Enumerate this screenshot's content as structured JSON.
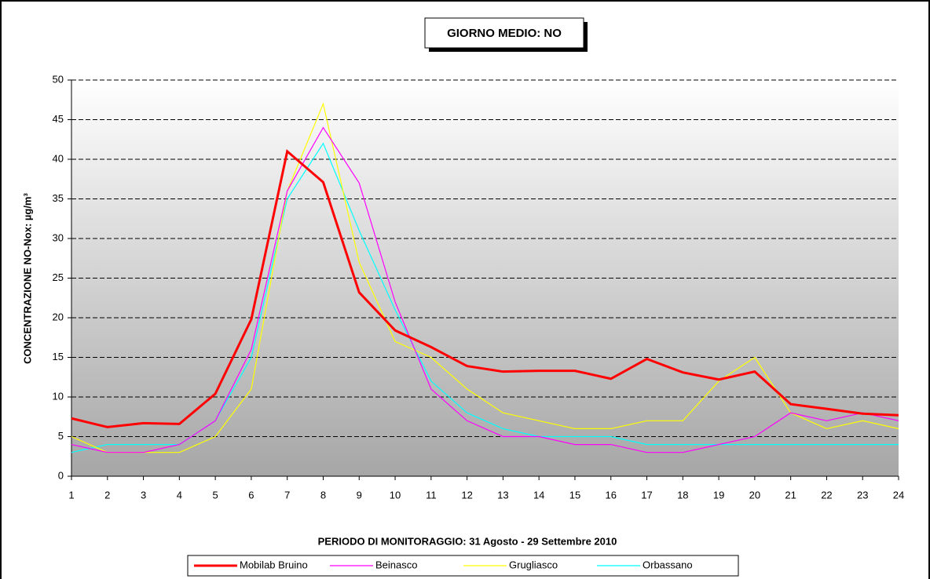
{
  "chart_data": {
    "type": "line",
    "title": "GIORNO MEDIO: NO",
    "y_label": "CONCENTRAZIONE NO-Nox: µg/m³",
    "x_label": "PERIODO DI MONITORAGGIO: 31 Agosto - 29 Settembre 2010",
    "x": [
      1,
      2,
      3,
      4,
      5,
      6,
      7,
      8,
      9,
      10,
      11,
      12,
      13,
      14,
      15,
      16,
      17,
      18,
      19,
      20,
      21,
      22,
      23,
      24
    ],
    "xlim": [
      1,
      24
    ],
    "xticks": [
      1,
      2,
      3,
      4,
      5,
      6,
      7,
      8,
      9,
      10,
      11,
      12,
      13,
      14,
      15,
      16,
      17,
      18,
      19,
      20,
      21,
      22,
      23,
      24
    ],
    "ylim": [
      0,
      50
    ],
    "yticks": [
      0,
      5,
      10,
      15,
      20,
      25,
      30,
      35,
      40,
      45,
      50
    ],
    "grid": true,
    "legend": "bottom",
    "series": [
      {
        "name": "Mobilab Bruino",
        "color": "#ff0000",
        "values": [
          7.3,
          6.2,
          6.7,
          6.6,
          10.4,
          19.8,
          41,
          37.1,
          23.2,
          18.4,
          16.3,
          13.9,
          13.2,
          13.3,
          13.3,
          12.3,
          14.8,
          13.1,
          12.2,
          13.2,
          9.1,
          8.5,
          7.9,
          7.7
        ]
      },
      {
        "name": "Beinasco",
        "color": "#ff00ff",
        "values": [
          4,
          3,
          3,
          4,
          7,
          16,
          36,
          44,
          37,
          22,
          11,
          7,
          5,
          5,
          4,
          4,
          3,
          3,
          4,
          5,
          8,
          7,
          8,
          7
        ]
      },
      {
        "name": "Grugliasco",
        "color": "#ffff00",
        "values": [
          5,
          3,
          3,
          3,
          5,
          11,
          36,
          47,
          27,
          17,
          15,
          11,
          8,
          7,
          6,
          6,
          7,
          7,
          12,
          15,
          8,
          6,
          7,
          6
        ]
      },
      {
        "name": "Orbassano",
        "color": "#00ffff",
        "values": [
          3,
          4,
          4,
          4,
          7,
          15,
          35,
          42,
          31,
          21,
          12,
          8,
          6,
          5,
          5,
          5,
          4,
          4,
          4,
          4,
          4,
          4,
          4,
          4
        ]
      }
    ]
  }
}
